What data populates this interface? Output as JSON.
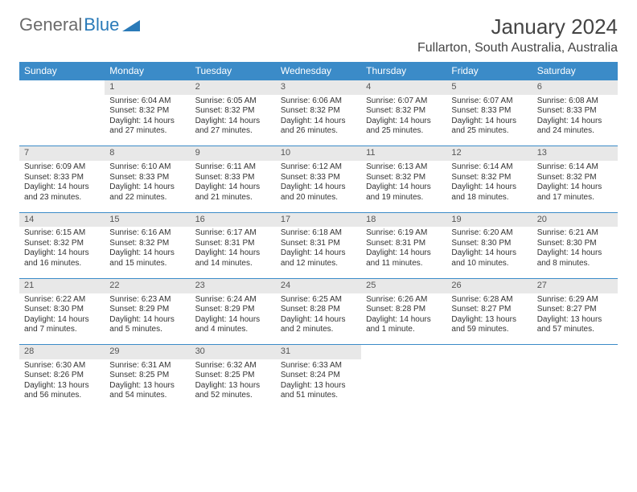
{
  "logo": {
    "word1": "General",
    "word2": "Blue"
  },
  "title": "January 2024",
  "location": "Fullarton, South Australia, Australia",
  "colors": {
    "header_bg": "#3b8bc8",
    "header_text": "#ffffff",
    "daynum_bg": "#e8e8e8",
    "border": "#3b8bc8",
    "text": "#333333",
    "logo_gray": "#6b6b6b",
    "logo_blue": "#2a7ab8",
    "page_bg": "#ffffff"
  },
  "day_headers": [
    "Sunday",
    "Monday",
    "Tuesday",
    "Wednesday",
    "Thursday",
    "Friday",
    "Saturday"
  ],
  "weeks": [
    {
      "nums": [
        "",
        "1",
        "2",
        "3",
        "4",
        "5",
        "6"
      ],
      "cells": [
        {
          "sunrise": "",
          "sunset": "",
          "daylight": ""
        },
        {
          "sunrise": "Sunrise: 6:04 AM",
          "sunset": "Sunset: 8:32 PM",
          "daylight": "Daylight: 14 hours and 27 minutes."
        },
        {
          "sunrise": "Sunrise: 6:05 AM",
          "sunset": "Sunset: 8:32 PM",
          "daylight": "Daylight: 14 hours and 27 minutes."
        },
        {
          "sunrise": "Sunrise: 6:06 AM",
          "sunset": "Sunset: 8:32 PM",
          "daylight": "Daylight: 14 hours and 26 minutes."
        },
        {
          "sunrise": "Sunrise: 6:07 AM",
          "sunset": "Sunset: 8:32 PM",
          "daylight": "Daylight: 14 hours and 25 minutes."
        },
        {
          "sunrise": "Sunrise: 6:07 AM",
          "sunset": "Sunset: 8:33 PM",
          "daylight": "Daylight: 14 hours and 25 minutes."
        },
        {
          "sunrise": "Sunrise: 6:08 AM",
          "sunset": "Sunset: 8:33 PM",
          "daylight": "Daylight: 14 hours and 24 minutes."
        }
      ]
    },
    {
      "nums": [
        "7",
        "8",
        "9",
        "10",
        "11",
        "12",
        "13"
      ],
      "cells": [
        {
          "sunrise": "Sunrise: 6:09 AM",
          "sunset": "Sunset: 8:33 PM",
          "daylight": "Daylight: 14 hours and 23 minutes."
        },
        {
          "sunrise": "Sunrise: 6:10 AM",
          "sunset": "Sunset: 8:33 PM",
          "daylight": "Daylight: 14 hours and 22 minutes."
        },
        {
          "sunrise": "Sunrise: 6:11 AM",
          "sunset": "Sunset: 8:33 PM",
          "daylight": "Daylight: 14 hours and 21 minutes."
        },
        {
          "sunrise": "Sunrise: 6:12 AM",
          "sunset": "Sunset: 8:33 PM",
          "daylight": "Daylight: 14 hours and 20 minutes."
        },
        {
          "sunrise": "Sunrise: 6:13 AM",
          "sunset": "Sunset: 8:32 PM",
          "daylight": "Daylight: 14 hours and 19 minutes."
        },
        {
          "sunrise": "Sunrise: 6:14 AM",
          "sunset": "Sunset: 8:32 PM",
          "daylight": "Daylight: 14 hours and 18 minutes."
        },
        {
          "sunrise": "Sunrise: 6:14 AM",
          "sunset": "Sunset: 8:32 PM",
          "daylight": "Daylight: 14 hours and 17 minutes."
        }
      ]
    },
    {
      "nums": [
        "14",
        "15",
        "16",
        "17",
        "18",
        "19",
        "20"
      ],
      "cells": [
        {
          "sunrise": "Sunrise: 6:15 AM",
          "sunset": "Sunset: 8:32 PM",
          "daylight": "Daylight: 14 hours and 16 minutes."
        },
        {
          "sunrise": "Sunrise: 6:16 AM",
          "sunset": "Sunset: 8:32 PM",
          "daylight": "Daylight: 14 hours and 15 minutes."
        },
        {
          "sunrise": "Sunrise: 6:17 AM",
          "sunset": "Sunset: 8:31 PM",
          "daylight": "Daylight: 14 hours and 14 minutes."
        },
        {
          "sunrise": "Sunrise: 6:18 AM",
          "sunset": "Sunset: 8:31 PM",
          "daylight": "Daylight: 14 hours and 12 minutes."
        },
        {
          "sunrise": "Sunrise: 6:19 AM",
          "sunset": "Sunset: 8:31 PM",
          "daylight": "Daylight: 14 hours and 11 minutes."
        },
        {
          "sunrise": "Sunrise: 6:20 AM",
          "sunset": "Sunset: 8:30 PM",
          "daylight": "Daylight: 14 hours and 10 minutes."
        },
        {
          "sunrise": "Sunrise: 6:21 AM",
          "sunset": "Sunset: 8:30 PM",
          "daylight": "Daylight: 14 hours and 8 minutes."
        }
      ]
    },
    {
      "nums": [
        "21",
        "22",
        "23",
        "24",
        "25",
        "26",
        "27"
      ],
      "cells": [
        {
          "sunrise": "Sunrise: 6:22 AM",
          "sunset": "Sunset: 8:30 PM",
          "daylight": "Daylight: 14 hours and 7 minutes."
        },
        {
          "sunrise": "Sunrise: 6:23 AM",
          "sunset": "Sunset: 8:29 PM",
          "daylight": "Daylight: 14 hours and 5 minutes."
        },
        {
          "sunrise": "Sunrise: 6:24 AM",
          "sunset": "Sunset: 8:29 PM",
          "daylight": "Daylight: 14 hours and 4 minutes."
        },
        {
          "sunrise": "Sunrise: 6:25 AM",
          "sunset": "Sunset: 8:28 PM",
          "daylight": "Daylight: 14 hours and 2 minutes."
        },
        {
          "sunrise": "Sunrise: 6:26 AM",
          "sunset": "Sunset: 8:28 PM",
          "daylight": "Daylight: 14 hours and 1 minute."
        },
        {
          "sunrise": "Sunrise: 6:28 AM",
          "sunset": "Sunset: 8:27 PM",
          "daylight": "Daylight: 13 hours and 59 minutes."
        },
        {
          "sunrise": "Sunrise: 6:29 AM",
          "sunset": "Sunset: 8:27 PM",
          "daylight": "Daylight: 13 hours and 57 minutes."
        }
      ]
    },
    {
      "nums": [
        "28",
        "29",
        "30",
        "31",
        "",
        "",
        ""
      ],
      "cells": [
        {
          "sunrise": "Sunrise: 6:30 AM",
          "sunset": "Sunset: 8:26 PM",
          "daylight": "Daylight: 13 hours and 56 minutes."
        },
        {
          "sunrise": "Sunrise: 6:31 AM",
          "sunset": "Sunset: 8:25 PM",
          "daylight": "Daylight: 13 hours and 54 minutes."
        },
        {
          "sunrise": "Sunrise: 6:32 AM",
          "sunset": "Sunset: 8:25 PM",
          "daylight": "Daylight: 13 hours and 52 minutes."
        },
        {
          "sunrise": "Sunrise: 6:33 AM",
          "sunset": "Sunset: 8:24 PM",
          "daylight": "Daylight: 13 hours and 51 minutes."
        },
        {
          "sunrise": "",
          "sunset": "",
          "daylight": ""
        },
        {
          "sunrise": "",
          "sunset": "",
          "daylight": ""
        },
        {
          "sunrise": "",
          "sunset": "",
          "daylight": ""
        }
      ]
    }
  ]
}
